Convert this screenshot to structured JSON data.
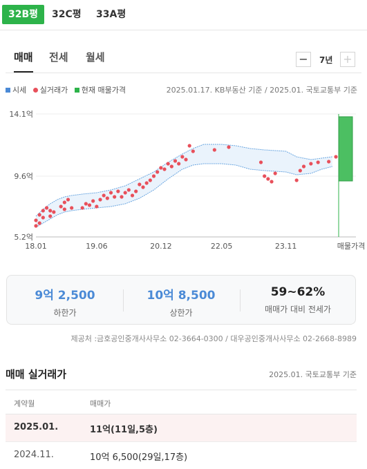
{
  "size_tabs": [
    {
      "label": "32B평",
      "active": true
    },
    {
      "label": "32C평",
      "active": false
    },
    {
      "label": "33A평",
      "active": false
    }
  ],
  "deal_tabs": [
    {
      "label": "매매",
      "active": true
    },
    {
      "label": "전세",
      "active": false
    },
    {
      "label": "월세",
      "active": false
    }
  ],
  "period": {
    "label": "7년",
    "minus": "−",
    "plus": "+"
  },
  "legend": [
    {
      "label": "시세",
      "color": "#4b8ad6",
      "shape": "square"
    },
    {
      "label": "실거래가",
      "color": "#e8505b",
      "shape": "dot"
    },
    {
      "label": "현재 매물가격",
      "color": "#2db34a",
      "shape": "square"
    }
  ],
  "source_text": "2025.01.17. KB부동산 기준 / 2025.01. 국토교통부 기준",
  "chart_data": {
    "type": "scatter",
    "y_ticks": [
      "14.1억",
      "9.6억",
      "5.2억"
    ],
    "y_tick_values": [
      14.1,
      9.6,
      5.2
    ],
    "ylim": [
      5.2,
      14.1
    ],
    "x_ticks": [
      "18.01",
      "19.06",
      "20.12",
      "22.05",
      "23.11"
    ],
    "x_tick_values": [
      "2018-01",
      "2019-06",
      "2020-12",
      "2022-05",
      "2023-11"
    ],
    "xlim": [
      "2018-01",
      "2025-01"
    ],
    "listing_label": "매물가격",
    "listing_range": [
      9.25,
      13.9
    ],
    "grid": true,
    "kb_price_range": {
      "name": "시세",
      "x": [
        "2018-01",
        "2018-03",
        "2018-05",
        "2018-07",
        "2018-09",
        "2018-11",
        "2019-02",
        "2019-06",
        "2019-10",
        "2020-02",
        "2020-06",
        "2020-10",
        "2021-02",
        "2021-06",
        "2021-09",
        "2021-12",
        "2022-05",
        "2022-09",
        "2023-01",
        "2023-05",
        "2023-11",
        "2024-02",
        "2024-06",
        "2024-09",
        "2024-12"
      ],
      "upper": [
        6.7,
        7.2,
        7.6,
        7.9,
        8.1,
        8.2,
        8.3,
        8.4,
        8.6,
        8.9,
        9.4,
        9.9,
        10.6,
        11.2,
        11.6,
        11.9,
        11.9,
        11.8,
        11.6,
        11.5,
        11.4,
        11.0,
        10.8,
        10.9,
        11.0
      ],
      "lower": [
        5.9,
        6.2,
        6.5,
        6.8,
        7.0,
        7.1,
        7.2,
        7.3,
        7.4,
        7.6,
        8.0,
        8.6,
        9.4,
        10.1,
        10.4,
        10.5,
        10.5,
        10.4,
        10.1,
        10.0,
        9.9,
        9.7,
        9.8,
        10.1,
        10.3
      ]
    },
    "transactions": {
      "name": "실거래가",
      "x": [
        "2018-01",
        "2018-01",
        "2018-02",
        "2018-02",
        "2018-03",
        "2018-03",
        "2018-04",
        "2018-05",
        "2018-05",
        "2018-06",
        "2018-08",
        "2018-09",
        "2018-09",
        "2018-10",
        "2018-11",
        "2019-02",
        "2019-03",
        "2019-04",
        "2019-05",
        "2019-06",
        "2019-07",
        "2019-08",
        "2019-09",
        "2019-10",
        "2019-11",
        "2019-12",
        "2020-01",
        "2020-02",
        "2020-03",
        "2020-04",
        "2020-05",
        "2020-06",
        "2020-07",
        "2020-08",
        "2020-09",
        "2020-10",
        "2020-11",
        "2020-12",
        "2021-01",
        "2021-02",
        "2021-03",
        "2021-04",
        "2021-05",
        "2021-06",
        "2021-07",
        "2021-08",
        "2021-09",
        "2022-03",
        "2022-07",
        "2023-04",
        "2023-05",
        "2023-06",
        "2023-07",
        "2023-08",
        "2024-02",
        "2024-03",
        "2024-04",
        "2024-06",
        "2024-08",
        "2024-11",
        "2025-01"
      ],
      "y": [
        6.0,
        6.4,
        6.2,
        6.8,
        6.6,
        7.1,
        7.3,
        7.1,
        6.7,
        7.0,
        7.4,
        7.7,
        7.2,
        7.9,
        7.3,
        7.3,
        7.6,
        7.5,
        7.8,
        7.4,
        7.9,
        8.2,
        8.0,
        8.4,
        8.1,
        8.5,
        8.1,
        8.4,
        8.6,
        8.2,
        8.5,
        9.0,
        8.8,
        9.1,
        9.3,
        9.6,
        9.9,
        10.2,
        10.1,
        10.5,
        10.3,
        10.7,
        10.5,
        11.0,
        10.8,
        11.8,
        11.4,
        11.5,
        11.7,
        10.6,
        9.6,
        9.4,
        9.2,
        9.8,
        9.3,
        10.0,
        10.3,
        10.5,
        10.6,
        10.65,
        11.0
      ]
    }
  },
  "summary": {
    "low": {
      "value": "9억 2,500",
      "label": "하한가"
    },
    "high": {
      "value": "10억 8,500",
      "label": "상한가"
    },
    "ratio": {
      "value": "59~62%",
      "label": "매매가 대비 전세가"
    }
  },
  "provider_text": "제공처 :금호공인중개사사무소 02-3664-0300 / 대우공인중개사사무소 02-2668-8989",
  "transactions": {
    "title": "매매 실거래가",
    "source": "2025.01. 국토교통부 기준",
    "columns": [
      "계약월",
      "매매가"
    ],
    "rows": [
      {
        "month": "2025.01.",
        "price": "11억(11일,5층)",
        "highlight": true
      },
      {
        "month": "2024.11.",
        "price": "10억 6,500(29일,17층)",
        "highlight": false
      }
    ]
  }
}
